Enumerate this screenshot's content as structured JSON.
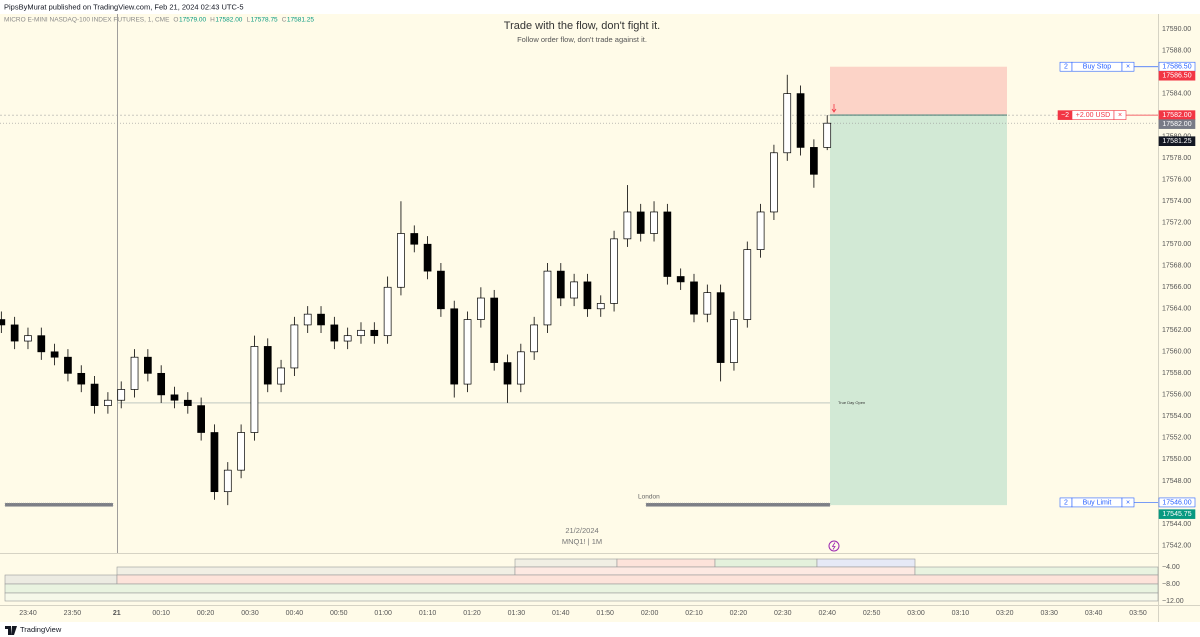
{
  "header": "PipsByMurat published on TradingView.com, Feb 21, 2024 02:43 UTC-5",
  "info": {
    "symbol": "MICRO E-MINI NASDAQ-100 INDEX FUTURES, 1, CME",
    "ohlc": [
      {
        "key": "O",
        "value": "17579.00"
      },
      {
        "key": "H",
        "value": "17582.00"
      },
      {
        "key": "L",
        "value": "17578.75"
      },
      {
        "key": "C",
        "value": "17581.25"
      }
    ]
  },
  "footer": "TradingView",
  "chart_data": {
    "type": "candlestick",
    "title": "Trade with the flow, don't fight it.",
    "subtitle": "Follow order flow, don't trade against it.",
    "watermark": [
      "21/2/2024",
      "MNQ1! | 1M"
    ],
    "x": [
      -6,
      -3,
      0,
      3,
      6,
      9,
      12,
      15,
      18,
      21,
      24,
      27,
      30,
      33,
      36,
      39,
      42,
      45,
      48,
      51,
      54,
      57,
      60,
      63,
      66,
      69,
      72,
      75,
      78,
      81,
      84,
      87,
      90,
      93,
      96,
      99,
      102,
      105,
      108,
      111,
      114,
      117,
      120,
      123,
      126,
      129,
      132,
      135,
      138,
      141,
      144,
      147,
      150,
      153,
      156,
      159,
      162,
      165,
      168,
      171,
      174,
      177,
      180
    ],
    "open": [
      17563,
      17562.5,
      17561,
      17561.5,
      17560,
      17559.5,
      17558,
      17557,
      17555,
      17555.5,
      17556.5,
      17559.5,
      17558,
      17556,
      17555.5,
      17555,
      17552.5,
      17547,
      17549,
      17552.5,
      17560.5,
      17557,
      17558.5,
      17562.5,
      17563.5,
      17562.5,
      17561,
      17561.5,
      17562,
      17561.5,
      17566,
      17571,
      17570,
      17567.5,
      17564,
      17557,
      17563,
      17565,
      17559,
      17557,
      17560,
      17562.5,
      17567.5,
      17565,
      17566.5,
      17564,
      17564.5,
      17570.5,
      17573,
      17571,
      17573,
      17567,
      17566.5,
      17563.5,
      17565.5,
      17559,
      17563,
      17569.5,
      17573,
      17578.5,
      17584,
      17579,
      17579
    ],
    "high": [
      17563.75,
      17563.25,
      17562.25,
      17562.25,
      17560.75,
      17560.25,
      17558.75,
      17557.75,
      17556.25,
      17557.25,
      17560.25,
      17560.25,
      17558.75,
      17556.75,
      17556.25,
      17555.75,
      17553.25,
      17549.75,
      17553.25,
      17561.5,
      17561.25,
      17559.25,
      17563.25,
      17564.25,
      17564.25,
      17563.25,
      17562.25,
      17562.75,
      17562.75,
      17567,
      17574,
      17571.75,
      17570.75,
      17568.25,
      17564.75,
      17563.75,
      17566,
      17565.75,
      17559.75,
      17560.75,
      17563.25,
      17568.25,
      17568.25,
      17567.25,
      17567.25,
      17565.25,
      17571.25,
      17575.5,
      17573.75,
      17574,
      17573.75,
      17567.75,
      17567.25,
      17566.25,
      17566.25,
      17563.75,
      17570.25,
      17573.75,
      17579.25,
      17585.75,
      17584.75,
      17579.75,
      17582
    ],
    "low": [
      17561.75,
      17560.25,
      17560.25,
      17559.25,
      17558.75,
      17557.25,
      17556.25,
      17554.25,
      17554.25,
      17554.75,
      17555.75,
      17557.25,
      17555.25,
      17554.75,
      17554.25,
      17551.75,
      17546.25,
      17545.75,
      17548.25,
      17551.75,
      17556.25,
      17556.25,
      17557.75,
      17561.75,
      17561.75,
      17560.25,
      17560.25,
      17560.75,
      17560.75,
      17560.75,
      17565.25,
      17569.25,
      17566.75,
      17563.25,
      17555.75,
      17556.25,
      17562.25,
      17558.25,
      17555.25,
      17556.25,
      17559.25,
      17561.75,
      17564.25,
      17564.25,
      17563.25,
      17563.25,
      17563.75,
      17569.75,
      17570.25,
      17570.25,
      17566.25,
      17565.75,
      17562.75,
      17562.75,
      17557.25,
      17558.25,
      17562.25,
      17568.75,
      17572.25,
      17577.75,
      17578.25,
      17575.25,
      17578.75
    ],
    "close": [
      17562.5,
      17561,
      17561.5,
      17560,
      17559.5,
      17558,
      17557,
      17555,
      17555.5,
      17556.5,
      17559.5,
      17558,
      17556,
      17555.5,
      17555,
      17552.5,
      17547,
      17549,
      17552.5,
      17560.5,
      17557,
      17558.5,
      17562.5,
      17563.5,
      17562.5,
      17561,
      17561.5,
      17562,
      17561.5,
      17566,
      17571,
      17570,
      17567.5,
      17564,
      17557,
      17563,
      17565,
      17559,
      17557,
      17560,
      17562.5,
      17567.5,
      17565,
      17566.5,
      17564,
      17564.5,
      17570.5,
      17573,
      17571,
      17573,
      17567,
      17566.5,
      17563.5,
      17565.5,
      17559,
      17563,
      17569.5,
      17573,
      17578.5,
      17584,
      17579,
      17576.5,
      17581.25
    ],
    "xlim": [
      -6.3,
      254.5
    ],
    "ylim": [
      17541.3,
      17591.4
    ],
    "xticks": [
      {
        "value": 0,
        "label": "23:40"
      },
      {
        "value": 10,
        "label": "23:50"
      },
      {
        "value": 20,
        "label": "21"
      },
      {
        "value": 30,
        "label": "00:10"
      },
      {
        "value": 40,
        "label": "00:20"
      },
      {
        "value": 50,
        "label": "00:30"
      },
      {
        "value": 60,
        "label": "00:40"
      },
      {
        "value": 70,
        "label": "00:50"
      },
      {
        "value": 80,
        "label": "01:00"
      },
      {
        "value": 90,
        "label": "01:10"
      },
      {
        "value": 100,
        "label": "01:20"
      },
      {
        "value": 110,
        "label": "01:30"
      },
      {
        "value": 120,
        "label": "01:40"
      },
      {
        "value": 130,
        "label": "01:50"
      },
      {
        "value": 140,
        "label": "02:00"
      },
      {
        "value": 150,
        "label": "02:10"
      },
      {
        "value": 160,
        "label": "02:20"
      },
      {
        "value": 170,
        "label": "02:30"
      },
      {
        "value": 180,
        "label": "02:40"
      },
      {
        "value": 190,
        "label": "02:50"
      },
      {
        "value": 200,
        "label": "03:00"
      },
      {
        "value": 210,
        "label": "03:10"
      },
      {
        "value": 220,
        "label": "03:20"
      },
      {
        "value": 230,
        "label": "03:30"
      },
      {
        "value": 240,
        "label": "03:40"
      },
      {
        "value": 250,
        "label": "03:50"
      }
    ],
    "yticks": [
      {
        "value": 17542,
        "label": "17542.00"
      },
      {
        "value": 17544,
        "label": "17544.00"
      },
      {
        "value": 17546,
        "label": "17546.00"
      },
      {
        "value": 17548,
        "label": "17548.00"
      },
      {
        "value": 17550,
        "label": "17550.00"
      },
      {
        "value": 17552,
        "label": "17552.00"
      },
      {
        "value": 17554,
        "label": "17554.00"
      },
      {
        "value": 17556,
        "label": "17556.00"
      },
      {
        "value": 17558,
        "label": "17558.00"
      },
      {
        "value": 17560,
        "label": "17560.00"
      },
      {
        "value": 17562,
        "label": "17562.00"
      },
      {
        "value": 17564,
        "label": "17564.00"
      },
      {
        "value": 17566,
        "label": "17566.00"
      },
      {
        "value": 17568,
        "label": "17568.00"
      },
      {
        "value": 17570,
        "label": "17570.00"
      },
      {
        "value": 17572,
        "label": "17572.00"
      },
      {
        "value": 17574,
        "label": "17574.00"
      },
      {
        "value": 17576,
        "label": "17576.00"
      },
      {
        "value": 17578,
        "label": "17578.00"
      },
      {
        "value": 17580,
        "label": "17580.00"
      },
      {
        "value": 17582,
        "label": "17582.00"
      },
      {
        "value": 17584,
        "label": "17584.00"
      },
      {
        "value": 17586,
        "label": "17586.00"
      },
      {
        "value": 17588,
        "label": "17588.00"
      },
      {
        "value": 17590,
        "label": "17590.00"
      }
    ],
    "day_open": {
      "value": 17555.25,
      "label": "True Day Open"
    },
    "session": "London",
    "position": {
      "stop": 17586.5,
      "entry": 17582,
      "target": 17545.75,
      "qty": "−2",
      "pnl": "+2.00 USD"
    },
    "orders": [
      {
        "qty": "2",
        "label": "Buy Stop",
        "price": 17586.5
      },
      {
        "qty": "2",
        "label": "Buy Limit",
        "price": 17546
      }
    ],
    "close_symbol": "×",
    "price_tags": [
      {
        "value": 17586.5,
        "label": "17586.50",
        "color": "#ffffff",
        "text": "#2962ff"
      },
      {
        "value": 17586.5,
        "label": "17586.50",
        "color": "#f23645",
        "text": "#ffffff"
      },
      {
        "value": 17582,
        "label": "17582.00",
        "color": "#f23645",
        "text": "#ffffff"
      },
      {
        "value": 17582,
        "label": "17582.00",
        "color": "#787b86",
        "text": "#ffffff"
      },
      {
        "value": 17581.25,
        "label": "17581.25",
        "color": "#131722",
        "text": "#ffffff"
      },
      {
        "value": 17546,
        "label": "17546.00",
        "color": "#ffffff",
        "text": "#2962ff"
      },
      {
        "value": 17545.75,
        "label": "17545.75",
        "color": "#089981",
        "text": "#ffffff"
      }
    ],
    "pane_ticks": [
      {
        "value": -4,
        "label": "−4.00"
      },
      {
        "value": -8,
        "label": "−8.00"
      },
      {
        "value": -12,
        "label": "−12.00"
      }
    ]
  }
}
